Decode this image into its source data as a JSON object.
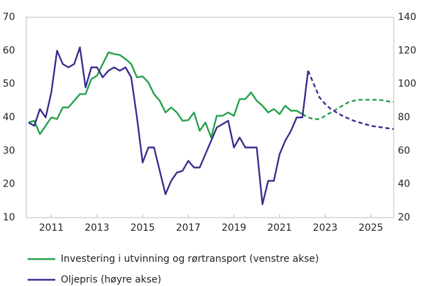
{
  "chart_data": {
    "type": "line",
    "x": [
      2010,
      2010.25,
      2010.5,
      2010.75,
      2011,
      2011.25,
      2011.5,
      2011.75,
      2012,
      2012.25,
      2012.5,
      2012.75,
      2013,
      2013.25,
      2013.5,
      2013.75,
      2014,
      2014.25,
      2014.5,
      2014.75,
      2015,
      2015.25,
      2015.5,
      2015.75,
      2016,
      2016.25,
      2016.5,
      2016.75,
      2017,
      2017.25,
      2017.5,
      2017.75,
      2018,
      2018.25,
      2018.5,
      2018.75,
      2019,
      2019.25,
      2019.5,
      2019.75,
      2020,
      2020.25,
      2020.5,
      2020.75,
      2021,
      2021.25,
      2021.5,
      2021.75,
      2022,
      2022.25,
      2022.5,
      2022.75,
      2023,
      2023.25,
      2023.5,
      2023.75,
      2024,
      2024.25,
      2024.5,
      2024.75,
      2025,
      2025.25,
      2025.5,
      2025.75,
      2026
    ],
    "series": [
      {
        "name": "Investering i utvinning og rørtransport (venstre akse)",
        "color": "#22a04b",
        "axis": "y",
        "values": [
          38.5,
          39,
          35,
          37.5,
          40,
          39.5,
          43,
          43,
          45,
          47,
          47,
          51.5,
          52.5,
          56,
          59.5,
          59,
          58.7,
          57.5,
          56,
          52,
          52.3,
          50.5,
          47,
          45,
          41.5,
          43,
          41.5,
          39,
          39.2,
          41.5,
          36,
          38.5,
          34,
          40.5,
          40.5,
          41.5,
          40.5,
          45.5,
          45.5,
          47.5,
          45,
          43.5,
          41.5,
          42.5,
          41,
          43.5,
          42,
          42,
          41,
          null,
          null,
          null,
          null,
          null,
          null,
          null,
          null,
          null,
          null,
          null,
          null,
          null,
          null,
          null,
          null
        ],
        "forecast": [
          null,
          null,
          null,
          null,
          null,
          null,
          null,
          null,
          null,
          null,
          null,
          null,
          null,
          null,
          null,
          null,
          null,
          null,
          null,
          null,
          null,
          null,
          null,
          null,
          null,
          null,
          null,
          null,
          null,
          null,
          null,
          null,
          null,
          null,
          null,
          null,
          null,
          null,
          null,
          null,
          null,
          null,
          null,
          null,
          null,
          null,
          null,
          null,
          41,
          40,
          39.5,
          39.5,
          40.5,
          41.5,
          42.5,
          43.5,
          44.5,
          45,
          45.3,
          45.3,
          45.3,
          45.3,
          45.2,
          44.8,
          44.7
        ]
      },
      {
        "name": "Oljepris (høyre akse)",
        "color": "#3d2b8f",
        "axis": "y2",
        "values": [
          77,
          75,
          85,
          80,
          95,
          120,
          112,
          110,
          112,
          122,
          98,
          110,
          110,
          104,
          108,
          110,
          108,
          110,
          104,
          80,
          53,
          62,
          62,
          48,
          34,
          42,
          47,
          48,
          54,
          50,
          50,
          58,
          66,
          74,
          76,
          78,
          62,
          68,
          62,
          62,
          62,
          28,
          42,
          42,
          58,
          66,
          72,
          80,
          80,
          108,
          null,
          null,
          null,
          null,
          null,
          null,
          null,
          null,
          null,
          null,
          null,
          null,
          null,
          null,
          null
        ],
        "forecast": [
          null,
          null,
          null,
          null,
          null,
          null,
          null,
          null,
          null,
          null,
          null,
          null,
          null,
          null,
          null,
          null,
          null,
          null,
          null,
          null,
          null,
          null,
          null,
          null,
          null,
          null,
          null,
          null,
          null,
          null,
          null,
          null,
          null,
          null,
          null,
          null,
          null,
          null,
          null,
          null,
          null,
          null,
          null,
          null,
          null,
          null,
          null,
          null,
          null,
          108,
          100,
          92,
          88,
          85,
          83,
          81,
          79.5,
          78,
          77,
          76,
          75,
          74.5,
          74,
          73.5,
          73
        ]
      }
    ],
    "xlim": [
      2009.9,
      2026
    ],
    "xticks": [
      2011,
      2013,
      2015,
      2017,
      2019,
      2021,
      2023,
      2025
    ],
    "ylim": [
      10,
      70
    ],
    "yticks": [
      10,
      20,
      30,
      40,
      50,
      60,
      70
    ],
    "y2lim": [
      20,
      140
    ],
    "y2ticks": [
      20,
      40,
      60,
      80,
      100,
      120,
      140
    ],
    "grid": false
  }
}
